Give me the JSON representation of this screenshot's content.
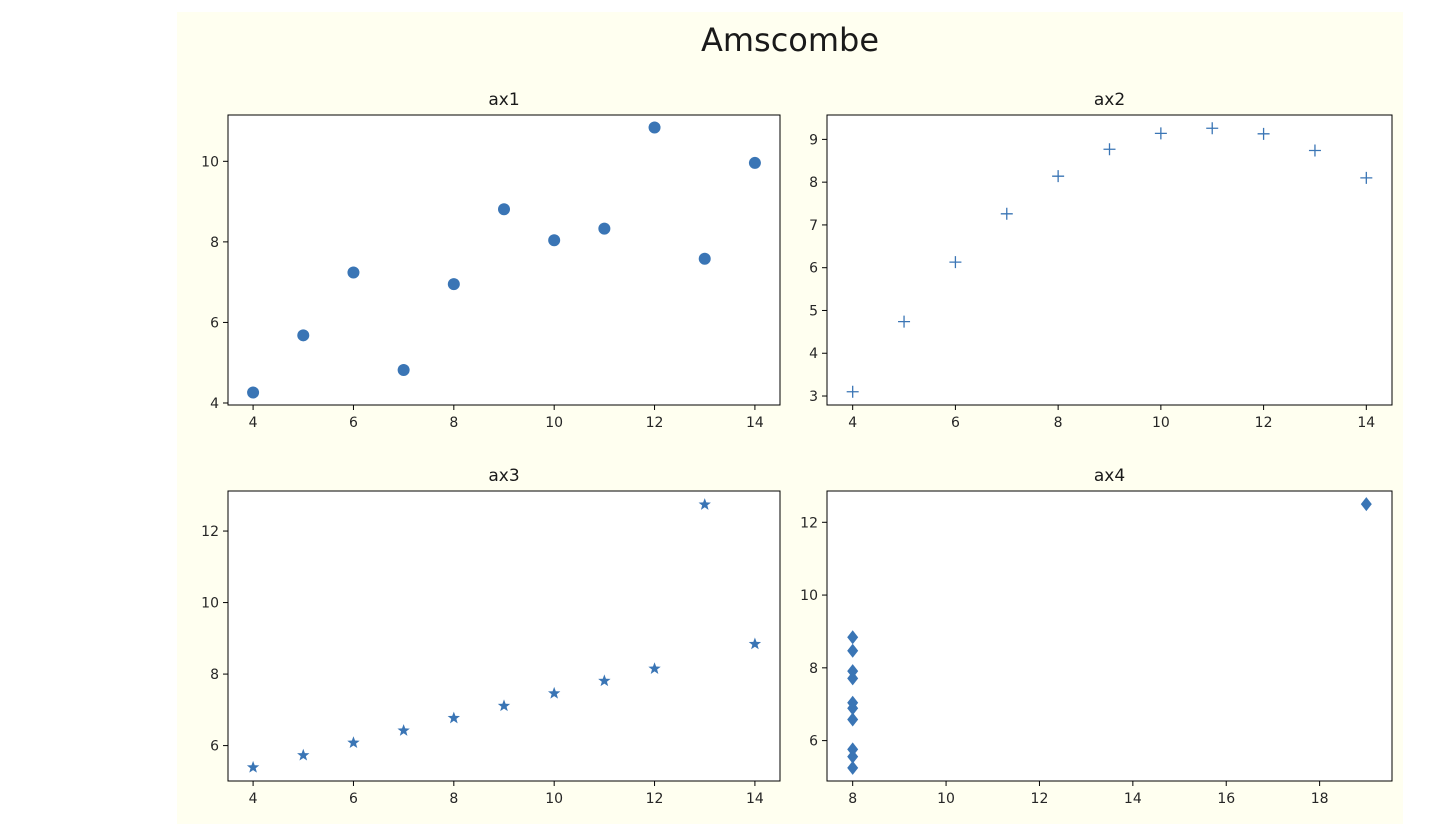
{
  "figure": {
    "title": "Amscombe",
    "background": "#fffff0",
    "marker_color": "#3a75b5"
  },
  "chart_data": [
    {
      "type": "scatter",
      "title": "ax1",
      "marker": "circle",
      "x": [
        4,
        5,
        6,
        7,
        8,
        9,
        10,
        11,
        12,
        13,
        14
      ],
      "y": [
        4.26,
        5.68,
        7.24,
        4.82,
        6.95,
        8.81,
        8.04,
        8.33,
        10.84,
        7.58,
        9.96
      ],
      "xlim": [
        3.5,
        14.5
      ],
      "ylim": [
        3.95,
        11.15
      ],
      "xticks": [
        4,
        6,
        8,
        10,
        12,
        14
      ],
      "yticks": [
        4,
        6,
        8,
        10
      ],
      "grid": false
    },
    {
      "type": "scatter",
      "title": "ax2",
      "marker": "plus",
      "x": [
        4,
        5,
        6,
        7,
        8,
        9,
        10,
        11,
        12,
        13,
        14
      ],
      "y": [
        3.1,
        4.74,
        6.13,
        7.26,
        8.14,
        8.77,
        9.14,
        9.26,
        9.13,
        8.74,
        8.1
      ],
      "xlim": [
        3.5,
        14.5
      ],
      "ylim": [
        2.79,
        9.57
      ],
      "xticks": [
        4,
        6,
        8,
        10,
        12,
        14
      ],
      "yticks": [
        3,
        4,
        5,
        6,
        7,
        8,
        9
      ],
      "grid": false
    },
    {
      "type": "scatter",
      "title": "ax3",
      "marker": "star",
      "x": [
        4,
        5,
        6,
        7,
        8,
        9,
        10,
        11,
        12,
        13,
        14
      ],
      "y": [
        5.39,
        5.73,
        6.08,
        6.42,
        6.77,
        7.11,
        7.46,
        7.81,
        8.15,
        12.74,
        8.84
      ],
      "xlim": [
        3.5,
        14.5
      ],
      "ylim": [
        5.01,
        13.12
      ],
      "xticks": [
        4,
        6,
        8,
        10,
        12,
        14
      ],
      "yticks": [
        6,
        8,
        10,
        12
      ],
      "grid": false
    },
    {
      "type": "scatter",
      "title": "ax4",
      "marker": "diamond",
      "x": [
        8,
        8,
        8,
        8,
        8,
        8,
        8,
        8,
        8,
        8,
        19
      ],
      "y": [
        5.25,
        5.56,
        5.76,
        6.58,
        6.89,
        7.04,
        7.71,
        7.91,
        8.47,
        8.84,
        12.5
      ],
      "xlim": [
        7.45,
        19.55
      ],
      "ylim": [
        4.89,
        12.86
      ],
      "xticks": [
        8,
        10,
        12,
        14,
        16,
        18
      ],
      "yticks": [
        6,
        8,
        10,
        12
      ],
      "grid": false
    }
  ]
}
